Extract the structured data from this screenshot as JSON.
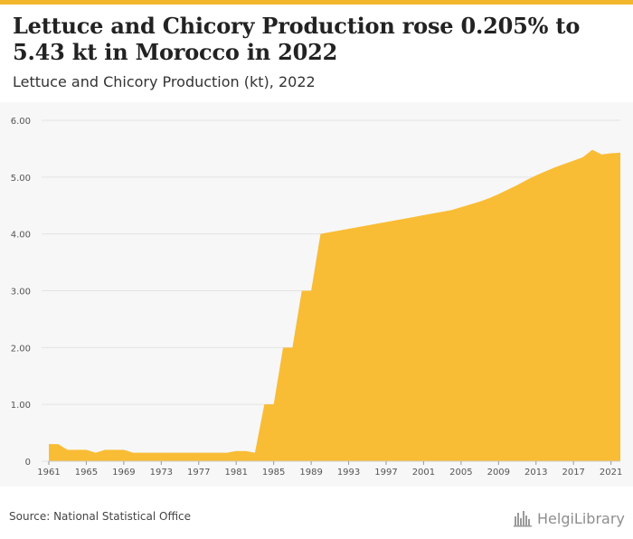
{
  "header": {
    "title": "Lettuce and Chicory Production rose 0.205% to 5.43 kt in Morocco in 2022",
    "subtitle": "Lettuce and Chicory Production (kt), 2022"
  },
  "footer": {
    "source": "Source: National Statistical Office",
    "brand": "HelgiLibrary",
    "brand_icon": "helgilibrary-logo-icon"
  },
  "colors": {
    "accent": "#f3b52b",
    "area_fill": "#f9bc35",
    "grid": "#e3e3e3"
  },
  "chart_data": {
    "type": "area",
    "title": "Lettuce and Chicory Production (kt), 2022",
    "xlabel": "",
    "ylabel": "",
    "ylim": [
      0,
      6
    ],
    "yticks": [
      0,
      1,
      2,
      3,
      4,
      5,
      6
    ],
    "ytick_labels": [
      "0",
      "1.00",
      "2.00",
      "3.00",
      "4.00",
      "5.00",
      "6.00"
    ],
    "xticks": [
      1961,
      1965,
      1969,
      1973,
      1977,
      1981,
      1985,
      1989,
      1993,
      1997,
      2001,
      2005,
      2009,
      2013,
      2017,
      2021
    ],
    "grid": true,
    "legend": "none",
    "x": [
      1961,
      1962,
      1963,
      1964,
      1965,
      1966,
      1967,
      1968,
      1969,
      1970,
      1971,
      1972,
      1973,
      1974,
      1975,
      1976,
      1977,
      1978,
      1979,
      1980,
      1981,
      1982,
      1983,
      1984,
      1985,
      1986,
      1987,
      1988,
      1989,
      1990,
      1991,
      1992,
      1993,
      1994,
      1995,
      1996,
      1997,
      1998,
      1999,
      2000,
      2001,
      2002,
      2003,
      2004,
      2005,
      2006,
      2007,
      2008,
      2009,
      2010,
      2011,
      2012,
      2013,
      2014,
      2015,
      2016,
      2017,
      2018,
      2019,
      2020,
      2021,
      2022
    ],
    "values": [
      0.3,
      0.3,
      0.2,
      0.2,
      0.2,
      0.15,
      0.2,
      0.2,
      0.2,
      0.15,
      0.15,
      0.15,
      0.15,
      0.15,
      0.15,
      0.15,
      0.15,
      0.15,
      0.15,
      0.15,
      0.18,
      0.18,
      0.15,
      1.0,
      1.0,
      2.0,
      2.0,
      3.0,
      3.0,
      4.0,
      4.03,
      4.06,
      4.09,
      4.12,
      4.15,
      4.18,
      4.21,
      4.24,
      4.27,
      4.3,
      4.33,
      4.36,
      4.39,
      4.42,
      4.47,
      4.52,
      4.57,
      4.63,
      4.7,
      4.78,
      4.86,
      4.95,
      5.03,
      5.1,
      5.17,
      5.23,
      5.29,
      5.35,
      5.48,
      5.4,
      5.42,
      5.43
    ]
  }
}
